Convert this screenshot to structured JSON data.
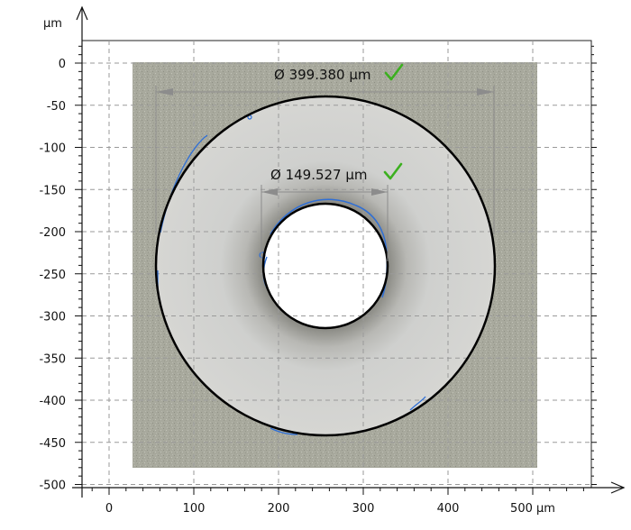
{
  "plot": {
    "x_unit": "µm",
    "y_unit": "µm",
    "x_ticks": [
      0,
      100,
      200,
      300,
      400,
      500
    ],
    "x_tick_labels": [
      "0",
      "100",
      "200",
      "300",
      "400",
      "500 µm"
    ],
    "y_ticks": [
      0,
      -50,
      -100,
      -150,
      -200,
      -250,
      -300,
      -350,
      -400,
      -450,
      -500
    ],
    "y_tick_labels": [
      "0",
      "-50",
      "-100",
      "-150",
      "-200",
      "-250",
      "-300",
      "-350",
      "-400",
      "-450",
      "-500"
    ],
    "x_range": [
      -32,
      570
    ],
    "y_range": [
      -508,
      27
    ],
    "grid": true,
    "colors": {
      "background_texture": "#a7a89c",
      "disk": "#d3d3d1",
      "circle_outline": "#000000",
      "edge_trace": "#2f6fd6",
      "pass_check": "#3cb01f",
      "dimension_line": "#8c8c8c"
    }
  },
  "measurements": {
    "outer": {
      "diameter_label": "Ø 399.380 µm",
      "diameter": 399.38,
      "center_x": 255,
      "center_y": -243,
      "status": "pass",
      "status_icon": "checkmark-icon"
    },
    "inner": {
      "diameter_label": "Ø 149.527 µm",
      "diameter": 149.527,
      "center_x": 255,
      "center_y": -242,
      "status": "pass",
      "status_icon": "checkmark-icon"
    }
  }
}
